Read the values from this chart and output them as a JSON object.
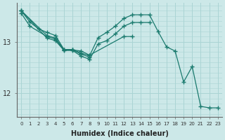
{
  "xlabel": "Humidex (Indice chaleur)",
  "ylabel": "",
  "bg_color": "#cce8e8",
  "line_color": "#1a7a6e",
  "grid_color": "#aad4d4",
  "xlim": [
    -0.5,
    23.5
  ],
  "ylim": [
    11.55,
    13.75
  ],
  "yticks": [
    12,
    13
  ],
  "xticks": [
    0,
    1,
    2,
    3,
    4,
    5,
    6,
    7,
    8,
    9,
    10,
    11,
    12,
    13,
    14,
    15,
    16,
    17,
    18,
    19,
    20,
    21,
    22,
    23
  ],
  "series": [
    {
      "x": [
        0,
        1,
        2,
        3,
        4,
        5,
        6,
        7,
        8,
        9,
        10,
        11,
        12,
        13,
        14,
        15,
        16,
        17,
        18,
        19,
        20,
        21,
        22,
        23
      ],
      "y": [
        13.6,
        13.38,
        13.25,
        13.18,
        13.12,
        12.85,
        12.85,
        12.78,
        12.73,
        13.08,
        13.18,
        13.3,
        13.45,
        13.52,
        13.52,
        13.52,
        13.2,
        12.9,
        12.82,
        12.22,
        12.52,
        11.75,
        11.72,
        11.72
      ]
    },
    {
      "x": [
        0,
        3,
        4,
        5,
        6,
        7,
        8,
        12,
        13
      ],
      "y": [
        13.6,
        13.12,
        13.07,
        12.84,
        12.84,
        12.82,
        12.74,
        13.1,
        13.1
      ]
    },
    {
      "x": [
        0,
        3,
        4,
        5,
        6,
        7,
        8,
        9,
        10,
        11,
        12,
        13,
        14,
        15
      ],
      "y": [
        13.6,
        13.07,
        13.02,
        12.83,
        12.83,
        12.72,
        12.66,
        12.96,
        13.02,
        13.15,
        13.3,
        13.37,
        13.37,
        13.37
      ]
    },
    {
      "x": [
        0,
        1,
        3,
        4,
        5,
        6,
        7,
        8
      ],
      "y": [
        13.55,
        13.3,
        13.1,
        13.05,
        12.84,
        12.84,
        12.76,
        12.7
      ]
    }
  ]
}
